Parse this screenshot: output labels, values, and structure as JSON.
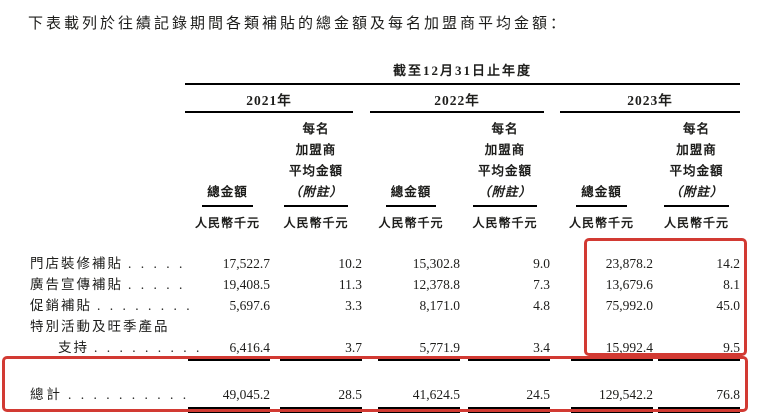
{
  "page": {
    "title": "下表載列於往績記錄期間各類補貼的總金額及每名加盟商平均金額："
  },
  "table": {
    "period_header": "截至12月31日止年度",
    "years": [
      "2021年",
      "2022年",
      "2023年"
    ],
    "col_total": "總金額",
    "col_avg_lines": [
      "每名",
      "加盟商",
      "平均金額",
      "（附註）"
    ],
    "unit": "人民幣千元",
    "rows": [
      {
        "label": "門店裝修補貼",
        "dots": ". . . . .",
        "values": [
          "17,522.7",
          "10.2",
          "15,302.8",
          "9.0",
          "23,878.2",
          "14.2"
        ]
      },
      {
        "label": "廣告宣傳補貼",
        "dots": ". . . . .",
        "values": [
          "19,408.5",
          "11.3",
          "12,378.8",
          "7.3",
          "13,679.6",
          "8.1"
        ]
      },
      {
        "label": "促銷補貼",
        "dots": ". . . . . . . .",
        "values": [
          "5,697.6",
          "3.3",
          "8,171.0",
          "4.8",
          "75,992.0",
          "45.0"
        ]
      },
      {
        "label": "特別活動及旺季產品",
        "dots": "",
        "values": [
          "",
          "",
          "",
          "",
          "",
          ""
        ]
      },
      {
        "label": "支持",
        "dots": ". . . . . . . . .",
        "values": [
          "6,416.4",
          "3.7",
          "5,771.9",
          "3.4",
          "15,992.4",
          "9.5"
        ]
      }
    ],
    "total_row": {
      "label": "總計",
      "dots": ". . . . . . . . . .",
      "values": [
        "49,045.2",
        "28.5",
        "41,624.5",
        "24.5",
        "129,542.2",
        "76.8"
      ]
    }
  },
  "highlight_color": "#d23a33"
}
